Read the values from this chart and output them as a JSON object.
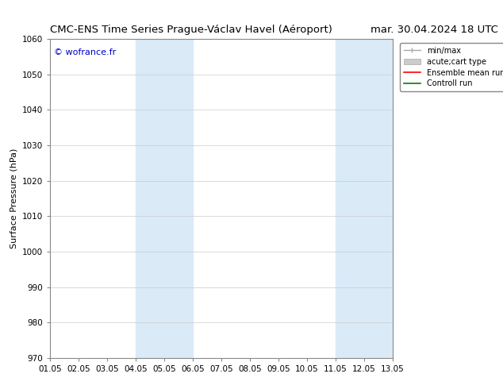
{
  "title_left": "CMC-ENS Time Series Prague-Václav Havel (Aéroport)",
  "title_right": "mar. 30.04.2024 18 UTC",
  "ylabel": "Surface Pressure (hPa)",
  "xlabel": "",
  "ylim": [
    970,
    1060
  ],
  "yticks": [
    970,
    980,
    990,
    1000,
    1010,
    1020,
    1030,
    1040,
    1050,
    1060
  ],
  "xtick_labels": [
    "01.05",
    "02.05",
    "03.05",
    "04.05",
    "05.05",
    "06.05",
    "07.05",
    "08.05",
    "09.05",
    "10.05",
    "11.05",
    "12.05",
    "13.05"
  ],
  "xtick_positions": [
    0,
    1,
    2,
    3,
    4,
    5,
    6,
    7,
    8,
    9,
    10,
    11,
    12
  ],
  "shaded_bands": [
    {
      "x_start": 3,
      "x_end": 5,
      "color": "#daeaf7"
    },
    {
      "x_start": 10,
      "x_end": 12,
      "color": "#daeaf7"
    }
  ],
  "copyright_text": "© wofrance.fr",
  "copyright_color": "#0000cc",
  "legend_entries": [
    {
      "label": "min/max",
      "color": "#aaaaaa",
      "lw": 1.0
    },
    {
      "label": "acute;cart type",
      "color": "#cccccc",
      "lw": 5
    },
    {
      "label": "Ensemble mean run",
      "color": "#ff0000",
      "lw": 1.2
    },
    {
      "label": "Controll run",
      "color": "#008000",
      "lw": 1.2
    }
  ],
  "bg_color": "#ffffff",
  "grid_color": "#cccccc",
  "title_fontsize": 9.5,
  "axis_fontsize": 8,
  "tick_fontsize": 7.5,
  "legend_fontsize": 7
}
